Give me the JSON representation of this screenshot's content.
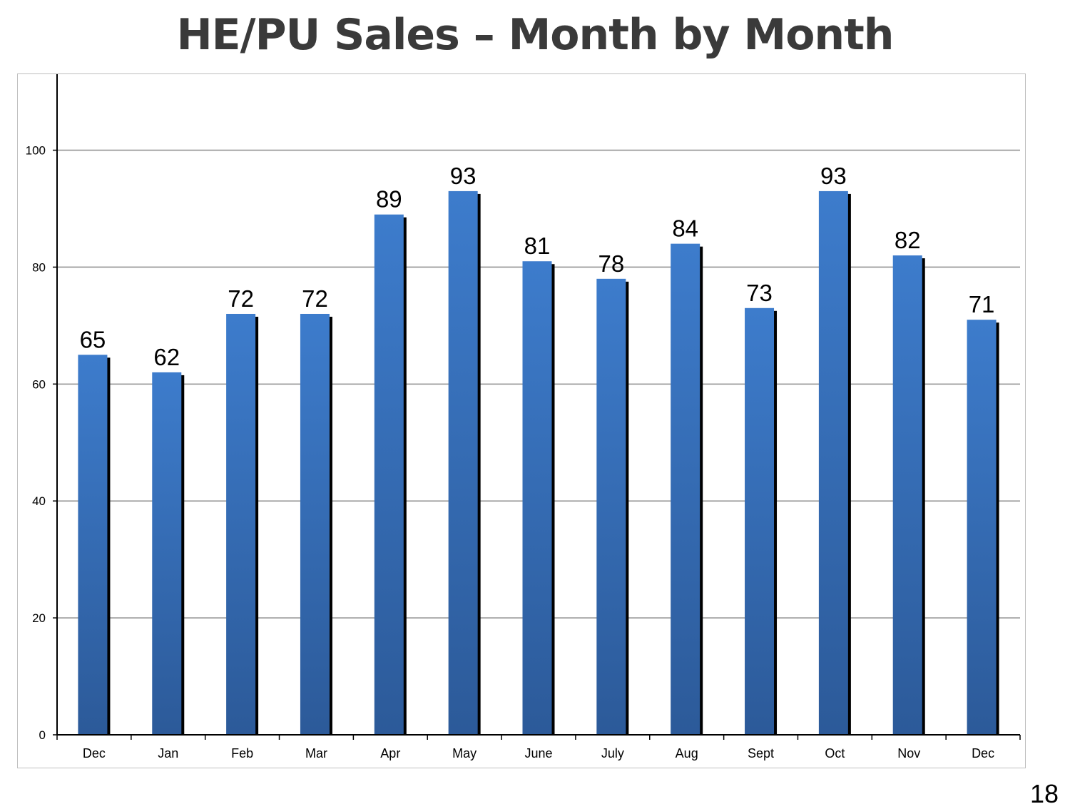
{
  "page": {
    "title": "HE/PU Sales – Month by Month",
    "page_number": "18"
  },
  "colors": {
    "bar_top": "#3d7ccc",
    "bar_bottom": "#2c5a99",
    "bar_shadow": "#000000",
    "gridline": "#8c8c8c",
    "axis": "#000000"
  },
  "chart_data": {
    "type": "bar",
    "title": "",
    "xlabel": "",
    "ylabel": "",
    "categories": [
      "Dec",
      "Jan",
      "Feb",
      "Mar",
      "Apr",
      "May",
      "June",
      "July",
      "Aug",
      "Sept",
      "Oct",
      "Nov",
      "Dec"
    ],
    "values": [
      65,
      62,
      72,
      72,
      89,
      93,
      81,
      78,
      84,
      73,
      93,
      82,
      71
    ],
    "data_labels": [
      "65",
      "62",
      "72",
      "72",
      "89",
      "93",
      "81",
      "78",
      "84",
      "73",
      "93",
      "82",
      "71"
    ],
    "ylim": [
      0,
      113
    ],
    "yticks": [
      0,
      20,
      40,
      60,
      80,
      100
    ],
    "ytick_labels": [
      "0",
      "20",
      "40",
      "60",
      "80",
      "100"
    ],
    "grid": true,
    "legend": "none"
  }
}
